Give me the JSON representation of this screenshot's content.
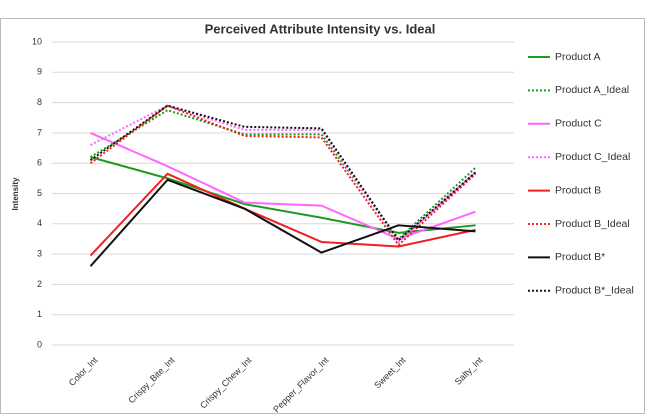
{
  "chart_data": {
    "type": "line",
    "title": "Perceived Attribute Intensity vs. Ideal",
    "y_label": "Intensity",
    "categories": [
      "Color_Int",
      "Crispy_Bite_Int",
      "Crispy_Chew_Int",
      "Pepper_Flavor_Int",
      "Sweet_Int",
      "Salty_Int"
    ],
    "ylim": [
      0,
      10
    ],
    "yticks": [
      0,
      1,
      2,
      3,
      4,
      5,
      6,
      7,
      8,
      9,
      10
    ],
    "grid": true,
    "legend": "right",
    "series": [
      {
        "name": "Product A",
        "color": "#1e9a1e",
        "dash": "solid",
        "values": [
          6.2,
          5.5,
          4.65,
          4.2,
          3.7,
          3.95
        ]
      },
      {
        "name": "Product A_Ideal",
        "color": "#1e9a1e",
        "dash": "dotted",
        "values": [
          6.2,
          7.75,
          6.95,
          6.95,
          3.5,
          5.85
        ]
      },
      {
        "name": "Product C",
        "color": "#ff66ff",
        "dash": "solid",
        "values": [
          7.0,
          5.9,
          4.7,
          4.6,
          3.5,
          4.4
        ]
      },
      {
        "name": "Product C_Ideal",
        "color": "#ff66ff",
        "dash": "dotted",
        "values": [
          6.6,
          7.9,
          7.1,
          7.1,
          3.4,
          5.7
        ]
      },
      {
        "name": "Product B",
        "color": "#ee2222",
        "dash": "solid",
        "values": [
          2.95,
          5.65,
          4.5,
          3.4,
          3.25,
          3.8
        ]
      },
      {
        "name": "Product B_Ideal",
        "color": "#ee2222",
        "dash": "dotted",
        "values": [
          6.0,
          7.9,
          6.9,
          6.85,
          3.3,
          5.65
        ]
      },
      {
        "name": "Product B*",
        "color": "#111111",
        "dash": "solid",
        "values": [
          2.6,
          5.45,
          4.5,
          3.05,
          3.95,
          3.75
        ]
      },
      {
        "name": "Product B*_Ideal",
        "color": "#111111",
        "dash": "dotted",
        "values": [
          6.1,
          7.9,
          7.2,
          7.15,
          3.45,
          5.7
        ]
      }
    ]
  }
}
